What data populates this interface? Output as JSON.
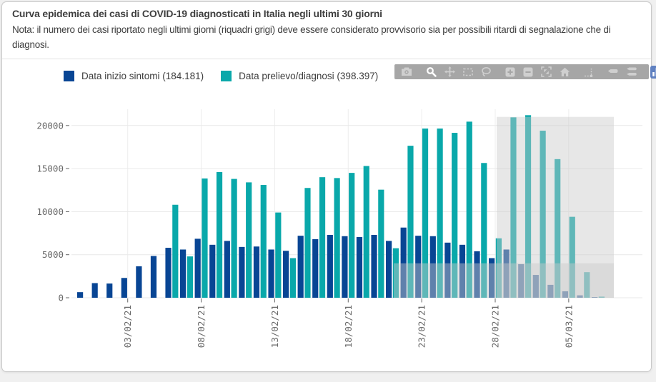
{
  "header": {
    "title": "Curva epidemica dei casi di COVID-19 diagnosticati in Italia negli ultimi 30 giorni",
    "note": "Nota: il numero dei casi riportato negli ultimi giorni (riquadri grigi) deve essere considerato provvisorio sia per possibili ritardi di segnalazione che di diagnosi."
  },
  "legend": {
    "items": [
      {
        "label": "Data inizio sintomi (184.181)",
        "color": "#084594"
      },
      {
        "label": "Data prelievo/diagnosi (398.397)",
        "color": "#09a8aa"
      }
    ]
  },
  "modebar": {
    "background": "#a6a6a6",
    "icon_color": "#cfcfcf",
    "active_icon_color": "#ffffff",
    "logo_background": "#6081c1",
    "icons": [
      "camera",
      "zoom",
      "pan",
      "box-select",
      "lasso-select",
      "zoom-in",
      "zoom-out",
      "autoscale",
      "reset-axes",
      "toggle-spikelines",
      "hover-closest",
      "hover-compare",
      "plotly-logo"
    ],
    "active_icon": "zoom",
    "group_start_indices": [
      1,
      5,
      9,
      10,
      12
    ]
  },
  "chart_data": {
    "type": "bar",
    "title": "Curva epidemica dei casi di COVID-19 diagnosticati in Italia negli ultimi 30 giorni",
    "categories": [
      "31/01/21",
      "01/02/21",
      "02/02/21",
      "03/02/21",
      "04/02/21",
      "05/02/21",
      "06/02/21",
      "07/02/21",
      "08/02/21",
      "09/02/21",
      "10/02/21",
      "11/02/21",
      "12/02/21",
      "13/02/21",
      "14/02/21",
      "15/02/21",
      "16/02/21",
      "17/02/21",
      "18/02/21",
      "19/02/21",
      "20/02/21",
      "21/02/21",
      "22/02/21",
      "23/02/21",
      "24/02/21",
      "25/02/21",
      "26/02/21",
      "27/02/21",
      "28/02/21",
      "01/03/21",
      "02/03/21",
      "03/03/21",
      "04/03/21",
      "05/03/21",
      "06/03/21",
      "07/03/21"
    ],
    "series": [
      {
        "name": "Data inizio sintomi",
        "total_label": "184.181",
        "color": "#084594",
        "values": [
          650,
          1700,
          1650,
          2300,
          3650,
          4850,
          5800,
          5600,
          6850,
          6150,
          6600,
          5900,
          5950,
          5600,
          5450,
          7200,
          6800,
          7300,
          7150,
          7050,
          7300,
          6600,
          8150,
          7200,
          7150,
          6400,
          6150,
          5400,
          4600,
          5600,
          3900,
          2650,
          1500,
          750,
          280,
          80
        ]
      },
      {
        "name": "Data prelievo/diagnosi",
        "total_label": "398.397",
        "color": "#09a8aa",
        "values": [
          null,
          null,
          null,
          null,
          null,
          null,
          10800,
          4800,
          13850,
          14600,
          13800,
          13400,
          13100,
          9900,
          4600,
          12750,
          14000,
          13900,
          14500,
          15300,
          12550,
          5750,
          17650,
          19650,
          19650,
          19150,
          20450,
          15650,
          6900,
          20950,
          21200,
          19400,
          16100,
          9400,
          2970,
          130
        ]
      }
    ],
    "ylim": [
      0,
      22000
    ],
    "yticks": [
      0,
      5000,
      10000,
      15000,
      20000
    ],
    "xticks": {
      "labels": [
        "03/02/21",
        "08/02/21",
        "13/02/21",
        "18/02/21",
        "23/02/21",
        "28/02/21",
        "05/03/21"
      ],
      "day_indices": [
        3,
        8,
        13,
        18,
        23,
        28,
        33
      ]
    },
    "grid": true,
    "legend_position": "top-left",
    "provisional_boxes": [
      {
        "from_date": "28/02/21",
        "to_date": "07/03/21",
        "y_top": 21000
      },
      {
        "from_date": "21/02/21",
        "to_date": "07/03/21",
        "y_top": 4000
      }
    ],
    "box_color": "#c9c9c9",
    "box_opacity": 0.45,
    "gridline_color": "#e9e9e9",
    "tick_label_color": "#696969",
    "tick_mark_color": "#666666"
  }
}
